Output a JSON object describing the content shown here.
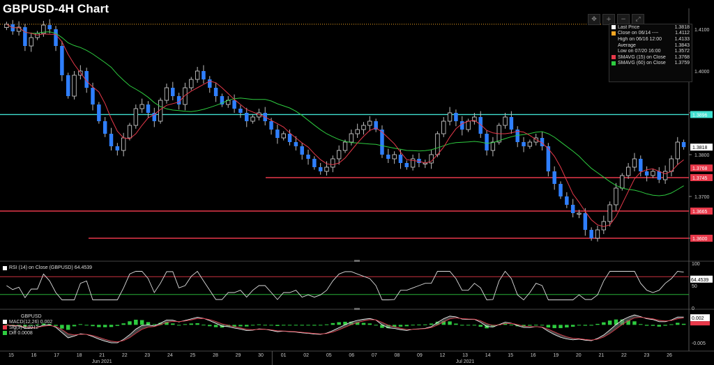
{
  "title": "GBPUSD-4H Chart",
  "toolbar": {
    "btn1": "✥",
    "btn2": "+",
    "btn3": "−",
    "btn4": "⤢"
  },
  "legend": {
    "rows": [
      {
        "label": "Last Price",
        "value": "1.3818",
        "color": "#ffffff"
      },
      {
        "label": "Close on 06/14 ----",
        "value": "1.4112",
        "color": "#f5a623"
      },
      {
        "label": "High on 06/16 12:00",
        "value": "1.4133",
        "color": "#888888"
      },
      {
        "label": "Average",
        "value": "1.3843",
        "color": "#888888"
      },
      {
        "label": "Low on 07/20 16:00",
        "value": "1.3572",
        "color": "#888888"
      },
      {
        "label": "SMAVG (15)  on Close",
        "value": "1.3768",
        "color": "#e8394a"
      },
      {
        "label": "SMAVG (60)  on Close",
        "value": "1.3759",
        "color": "#2ecc40"
      }
    ]
  },
  "rsi_legend": "RSI (14)  on Close (GBPUSD) 64.4539",
  "macd_legend": {
    "title": "GBPUSD",
    "rows": [
      {
        "label": "MACD(12,26) 0.002",
        "color": "#ffffff"
      },
      {
        "label": "Sig(9)       0.0012",
        "color": "#e8394a"
      },
      {
        "label": "Diff         0.0008",
        "color": "#2ecc40"
      }
    ]
  },
  "chart_data": [
    {
      "type": "line",
      "name": "price",
      "ylim": [
        1.355,
        1.415
      ],
      "y_ticks": [
        "1.4100",
        "1.4000",
        "1.3900",
        "1.3800",
        "1.3700",
        "1.3600"
      ],
      "x_day_labels": [
        "15",
        "16",
        "17",
        "18",
        "21",
        "22",
        "23",
        "24",
        "25",
        "28",
        "29",
        "30",
        "01",
        "02",
        "05",
        "06",
        "07",
        "08",
        "09",
        "12",
        "13",
        "14",
        "15",
        "16",
        "19",
        "20",
        "21",
        "22",
        "23",
        "26"
      ],
      "month_labels": [
        {
          "label": "Jun 2021",
          "day": "21"
        },
        {
          "label": "Jul 2021",
          "day": "13"
        }
      ],
      "price_labels": [
        {
          "value": 1.3896,
          "label": "1.3896",
          "color": "#40e0d0"
        },
        {
          "value": 1.3818,
          "label": "1.3818",
          "color": "#000000"
        },
        {
          "value": 1.3768,
          "label": "1.3768",
          "color": "#e8394a"
        },
        {
          "value": 1.3745,
          "label": "1.3745",
          "color": "#e8394a"
        },
        {
          "value": 1.3665,
          "label": "1.3665",
          "color": "#e8394a"
        },
        {
          "value": 1.36,
          "label": "1.3600",
          "color": "#e8394a"
        }
      ],
      "h_lines": [
        {
          "value": 1.4112,
          "style": "dotted",
          "color": "#f5a623"
        },
        {
          "value": 1.3896,
          "style": "solid",
          "color": "#40e0d0"
        },
        {
          "value": 1.3745,
          "style": "solid",
          "color": "#e8394a"
        },
        {
          "value": 1.3665,
          "style": "solid",
          "color": "#e8394a"
        },
        {
          "value": 1.36,
          "style": "solid",
          "color": "#e8394a"
        }
      ],
      "close_series": [
        1.4112,
        1.4095,
        1.4105,
        1.406,
        1.408,
        1.409,
        1.411,
        1.41,
        1.406,
        1.399,
        1.394,
        1.399,
        1.4,
        1.396,
        1.392,
        1.388,
        1.385,
        1.382,
        1.381,
        1.384,
        1.387,
        1.391,
        1.392,
        1.39,
        1.388,
        1.393,
        1.396,
        1.394,
        1.392,
        1.396,
        1.398,
        1.4,
        1.398,
        1.396,
        1.394,
        1.392,
        1.393,
        1.391,
        1.39,
        1.388,
        1.389,
        1.39,
        1.388,
        1.386,
        1.384,
        1.385,
        1.383,
        1.382,
        1.38,
        1.379,
        1.377,
        1.376,
        1.377,
        1.379,
        1.381,
        1.383,
        1.385,
        1.386,
        1.387,
        1.388,
        1.386,
        1.38,
        1.379,
        1.38,
        1.378,
        1.377,
        1.379,
        1.378,
        1.378,
        1.38,
        1.385,
        1.388,
        1.39,
        1.388,
        1.386,
        1.388,
        1.389,
        1.385,
        1.381,
        1.383,
        1.387,
        1.389,
        1.386,
        1.383,
        1.382,
        1.383,
        1.384,
        1.382,
        1.376,
        1.373,
        1.37,
        1.368,
        1.366,
        1.366,
        1.362,
        1.36,
        1.362,
        1.364,
        1.368,
        1.372,
        1.375,
        1.377,
        1.379,
        1.376,
        1.375,
        1.376,
        1.374,
        1.376,
        1.379,
        1.383,
        1.3818
      ]
    },
    {
      "type": "line",
      "name": "RSI (14)",
      "ylim": [
        0,
        100
      ],
      "y_ticks": [
        "100",
        "50",
        "0"
      ],
      "last": "64.4539"
    },
    {
      "type": "bar",
      "name": "MACD",
      "y_ticks": [
        "0.002",
        "-0.005"
      ],
      "last_macd": "0.002",
      "last_sig": "0.0012"
    }
  ]
}
